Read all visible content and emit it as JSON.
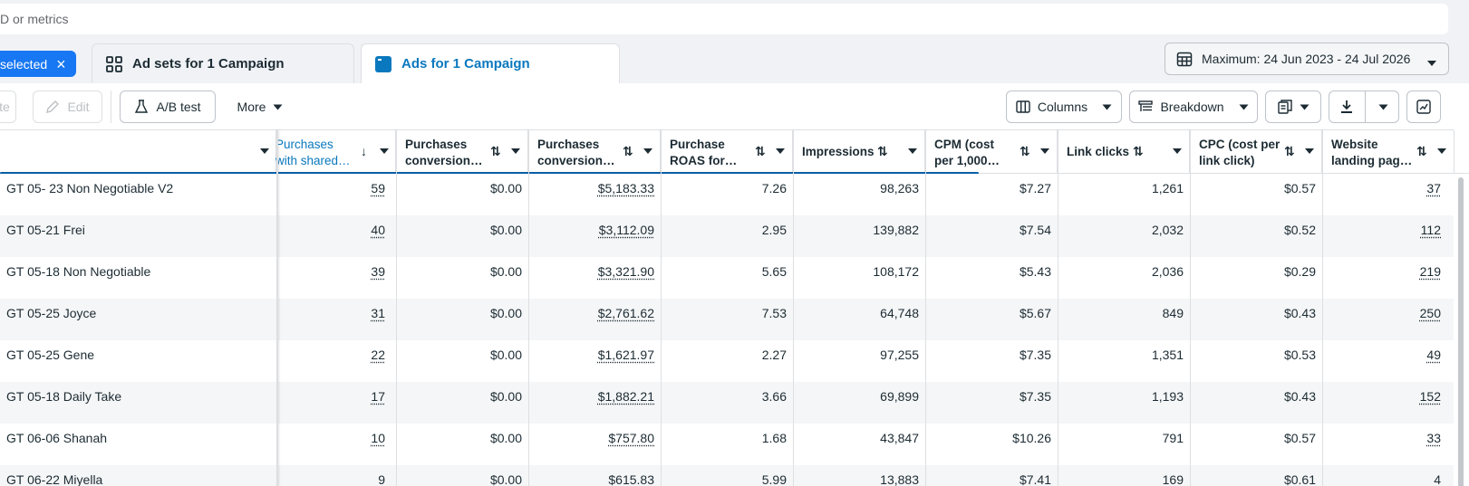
{
  "search": {
    "placeholder": "D or metrics"
  },
  "tabs": {
    "chip_label": "selected",
    "chip_close": "×",
    "adsets_label": "Ad sets for 1 Campaign",
    "ads_label": "Ads for 1 Campaign"
  },
  "date_range": {
    "label": "Maximum: 24 Jun 2023 - 24 Jul 2026"
  },
  "toolbar": {
    "duplicate_partial": "te",
    "edit_label": "Edit",
    "ab_test_label": "A/B test",
    "more_label": "More",
    "columns_label": "Columns",
    "breakdown_label": "Breakdown"
  },
  "table": {
    "headers": {
      "name": "",
      "purchases_shared": "Purchases\nwith shared…",
      "purchases_conv_1": "Purchases\nconversion…",
      "purchases_conv_2": "Purchases\nconversion…",
      "purchase_roas": "Purchase\nROAS for…",
      "impressions": "Impressions",
      "cpm": "CPM (cost\nper 1,000…",
      "link_clicks": "Link clicks",
      "cpc": "CPC (cost per\nlink click)",
      "website_landing": "Website\nlanding pag…"
    },
    "rows": [
      {
        "name": "GT 05- 23 Non Negotiable V2",
        "purchases_shared": "59",
        "purchases_conv_1": "$0.00",
        "purchases_conv_2": "$5,183.33",
        "purchase_roas": "7.26",
        "impressions": "98,263",
        "cpm": "$7.27",
        "link_clicks": "1,261",
        "cpc": "$0.57",
        "website_landing": "37"
      },
      {
        "name": "GT 05-21 Frei",
        "purchases_shared": "40",
        "purchases_conv_1": "$0.00",
        "purchases_conv_2": "$3,112.09",
        "purchase_roas": "2.95",
        "impressions": "139,882",
        "cpm": "$7.54",
        "link_clicks": "2,032",
        "cpc": "$0.52",
        "website_landing": "112"
      },
      {
        "name": "GT 05-18 Non Negotiable",
        "purchases_shared": "39",
        "purchases_conv_1": "$0.00",
        "purchases_conv_2": "$3,321.90",
        "purchase_roas": "5.65",
        "impressions": "108,172",
        "cpm": "$5.43",
        "link_clicks": "2,036",
        "cpc": "$0.29",
        "website_landing": "219"
      },
      {
        "name": "GT 05-25 Joyce",
        "purchases_shared": "31",
        "purchases_conv_1": "$0.00",
        "purchases_conv_2": "$2,761.62",
        "purchase_roas": "7.53",
        "impressions": "64,748",
        "cpm": "$5.67",
        "link_clicks": "849",
        "cpc": "$0.43",
        "website_landing": "250"
      },
      {
        "name": "GT 05-25 Gene",
        "purchases_shared": "22",
        "purchases_conv_1": "$0.00",
        "purchases_conv_2": "$1,621.97",
        "purchase_roas": "2.27",
        "impressions": "97,255",
        "cpm": "$7.35",
        "link_clicks": "1,351",
        "cpc": "$0.53",
        "website_landing": "49"
      },
      {
        "name": "GT 05-18 Daily Take",
        "purchases_shared": "17",
        "purchases_conv_1": "$0.00",
        "purchases_conv_2": "$1,882.21",
        "purchase_roas": "3.66",
        "impressions": "69,899",
        "cpm": "$7.35",
        "link_clicks": "1,193",
        "cpc": "$0.43",
        "website_landing": "152"
      },
      {
        "name": "GT 06-06 Shanah",
        "purchases_shared": "10",
        "purchases_conv_1": "$0.00",
        "purchases_conv_2": "$757.80",
        "purchase_roas": "1.68",
        "impressions": "43,847",
        "cpm": "$10.26",
        "link_clicks": "791",
        "cpc": "$0.57",
        "website_landing": "33"
      },
      {
        "name": "GT 06-22 Miyella",
        "purchases_shared": "9",
        "purchases_conv_1": "$0.00",
        "purchases_conv_2": "$615.83",
        "purchase_roas": "5.99",
        "impressions": "13,883",
        "cpm": "$7.41",
        "link_clicks": "169",
        "cpc": "$0.61",
        "website_landing": "4"
      }
    ]
  },
  "colors": {
    "accent": "#0a78be",
    "chip": "#1877f2",
    "alt_row": "#f5f6f7"
  }
}
